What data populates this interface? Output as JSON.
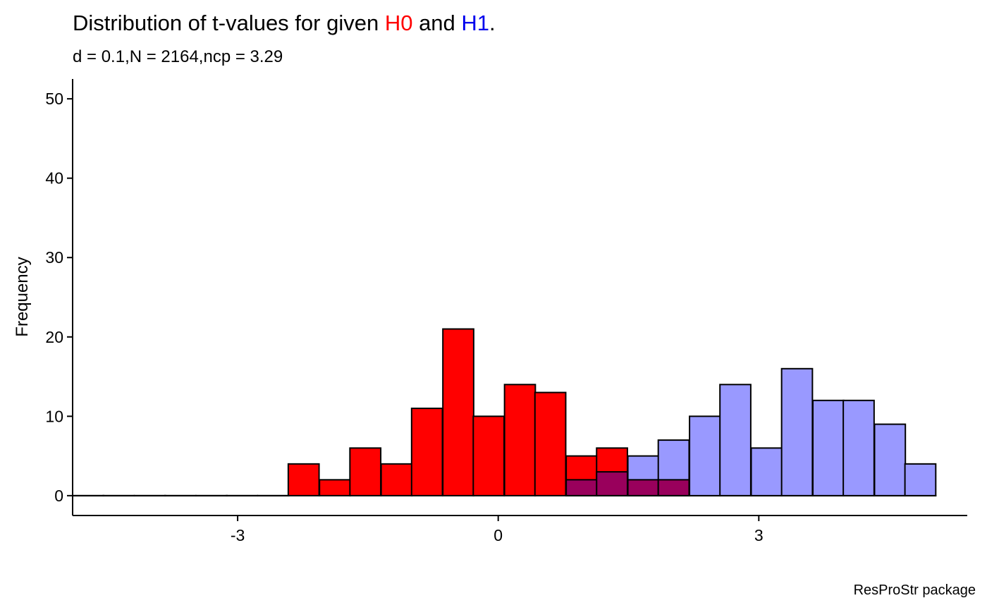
{
  "title": {
    "prefix": "Distribution of t-values for given ",
    "h0": "H0",
    "middle": " and ",
    "h1": "H1",
    "suffix": "."
  },
  "subtitle": "d = 0.1,N = 2164,ncp = 3.29",
  "caption": "ResProStr package",
  "colors": {
    "h0": "#ff0000",
    "h1": "#0000ee",
    "h0_fill": "#ff0000",
    "h1_fill": "#9999ff",
    "overlap_fill": "#99005c",
    "bar_outline": "#000000"
  },
  "chart_data": {
    "type": "bar",
    "subtype": "overlapping histogram",
    "xlabel": "",
    "ylabel": "Frequency",
    "xlim": [
      -4.9,
      5.4
    ],
    "ylim": [
      -2.5,
      52.5
    ],
    "x_ticks": [
      -3,
      0,
      3
    ],
    "x_tick_labels": [
      "-3",
      "0",
      "3"
    ],
    "y_ticks": [
      0,
      10,
      20,
      30,
      40,
      50
    ],
    "y_tick_labels": [
      "0",
      "10",
      "20",
      "30",
      "40",
      "50"
    ],
    "bin_width": 0.3548,
    "bin_centers": [
      -4.72,
      -4.37,
      -4.01,
      -3.66,
      -3.3,
      -2.95,
      -2.59,
      -2.24,
      -1.88,
      -1.53,
      -1.17,
      -0.82,
      -0.46,
      -0.11,
      0.25,
      0.6,
      0.96,
      1.31,
      1.67,
      2.02,
      2.38,
      2.73,
      3.09,
      3.44,
      3.8,
      4.15,
      4.51,
      4.86
    ],
    "series": [
      {
        "name": "H0",
        "color": "#ff0000",
        "values": [
          0,
          0,
          0,
          0,
          0,
          0,
          0,
          4,
          2,
          6,
          4,
          11,
          21,
          10,
          14,
          13,
          5,
          6,
          2,
          2,
          0,
          0,
          0,
          0,
          0,
          0,
          0,
          0
        ]
      },
      {
        "name": "H1",
        "color": "#9999ff",
        "values": [
          0,
          0,
          0,
          0,
          0,
          0,
          0,
          0,
          0,
          0,
          0,
          0,
          0,
          0,
          0,
          0,
          2,
          3,
          5,
          7,
          10,
          14,
          6,
          16,
          12,
          12,
          9,
          4
        ]
      }
    ],
    "grid": false,
    "legend": "none"
  }
}
